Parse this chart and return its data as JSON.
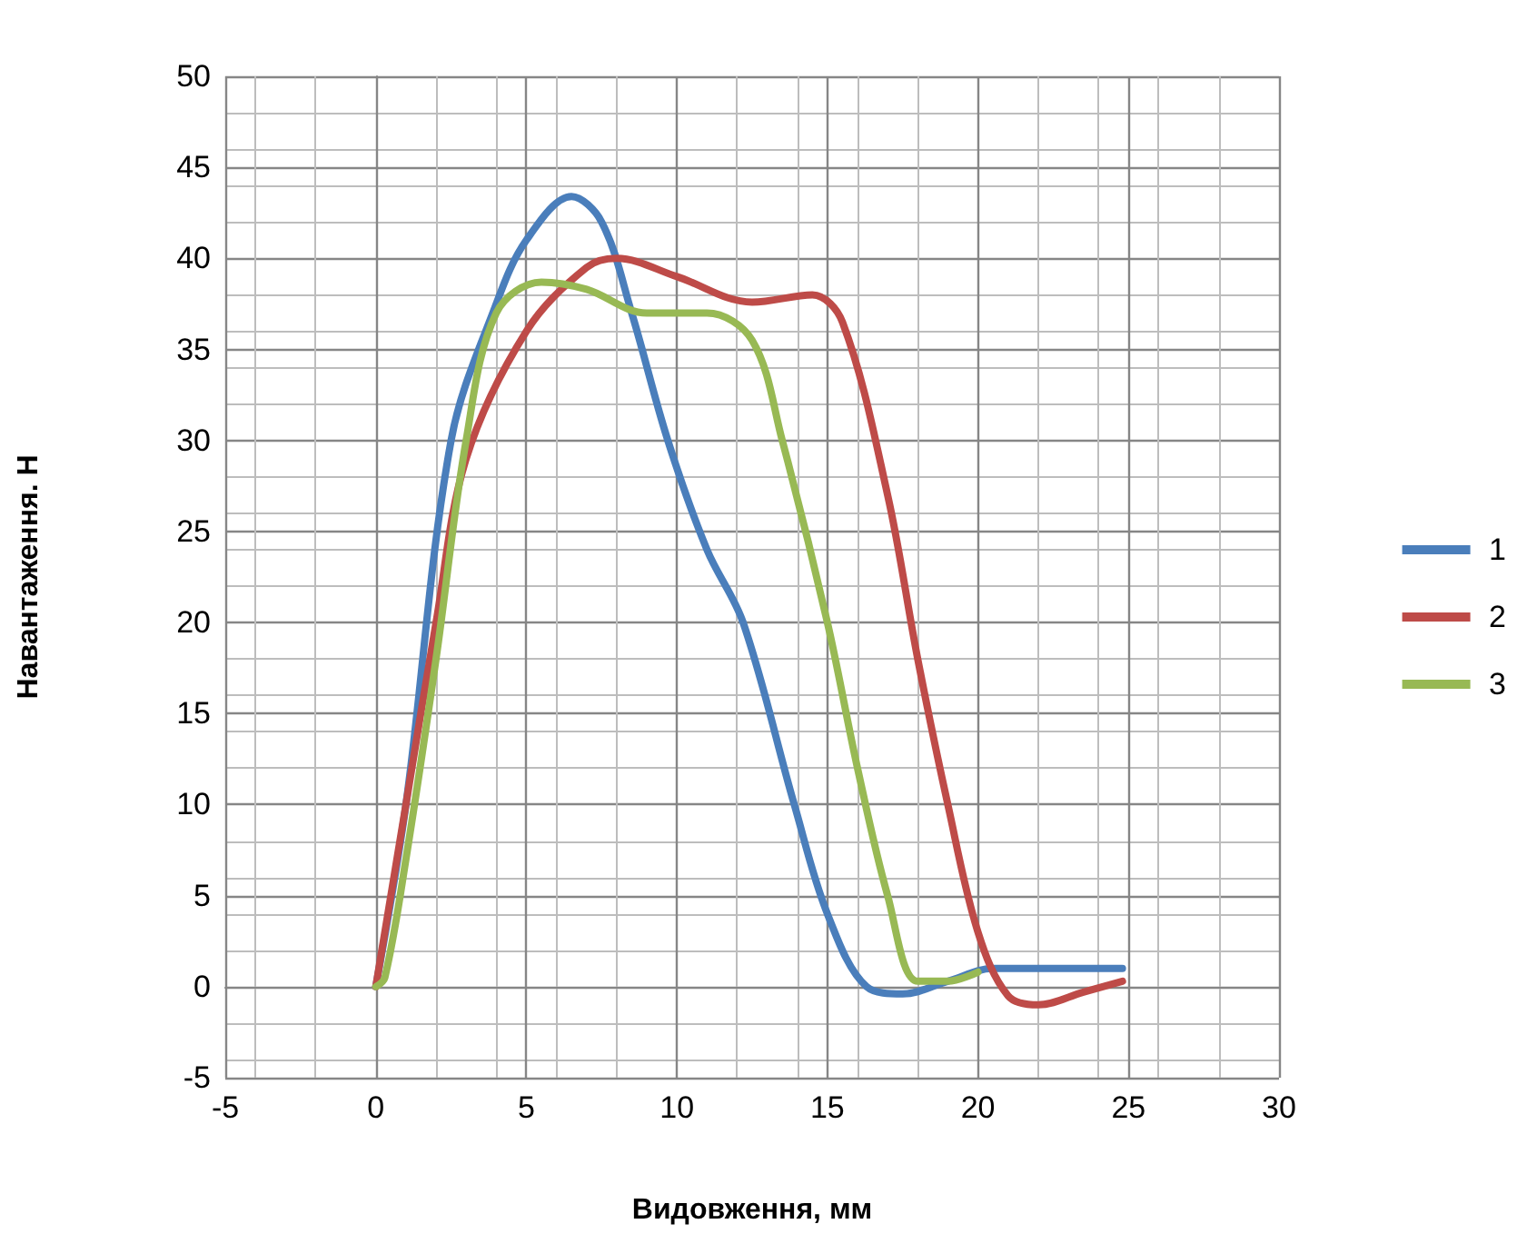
{
  "chart_data": {
    "type": "line",
    "xlabel": "Видовження, мм",
    "ylabel": "Навантаження. Н",
    "xlim": [
      -5,
      30
    ],
    "xticks": [
      -5,
      0,
      5,
      10,
      15,
      20,
      25,
      30
    ],
    "ylim": [
      -5,
      50
    ],
    "yticks": [
      -5,
      0,
      5,
      10,
      15,
      20,
      25,
      30,
      35,
      40,
      45,
      50
    ],
    "grid": true,
    "legend": "right",
    "marker": "none",
    "line_style": "solid",
    "series": [
      {
        "name": "1",
        "color": "#4a7ebb",
        "x": [
          0,
          1,
          2.5,
          4,
          5,
          6.5,
          7.5,
          8.5,
          9.7,
          11,
          12.2,
          13.9,
          15,
          16.3,
          17.5,
          19,
          20.5,
          24.8
        ],
        "values": [
          0,
          10,
          30,
          37.5,
          41,
          43.4,
          42,
          37,
          30,
          24,
          20,
          10,
          4,
          0,
          -0.4,
          0.3,
          1,
          1
        ]
      },
      {
        "name": "2",
        "color": "#be4b48",
        "x": [
          0,
          1,
          2,
          3,
          5,
          7,
          8,
          10,
          12.5,
          14.5,
          15.5,
          17,
          18,
          19,
          20,
          21,
          22,
          23.5,
          24.8
        ],
        "values": [
          0,
          10,
          20,
          29,
          36,
          39.5,
          40,
          39,
          37.6,
          38,
          36.5,
          27,
          18,
          10,
          3,
          -0.5,
          -1,
          -0.3,
          0.3
        ]
      },
      {
        "name": "3",
        "color": "#98b954",
        "x": [
          0,
          0.3,
          1,
          2,
          3,
          4,
          5.5,
          7,
          9,
          11,
          12.5,
          13.5,
          15,
          16,
          17,
          18,
          19,
          20
        ],
        "values": [
          0,
          0.5,
          7,
          18,
          30,
          37,
          38.7,
          38.3,
          37,
          37,
          35.5,
          30,
          20,
          12,
          5,
          0.3,
          0.3,
          0.8
        ]
      }
    ]
  }
}
